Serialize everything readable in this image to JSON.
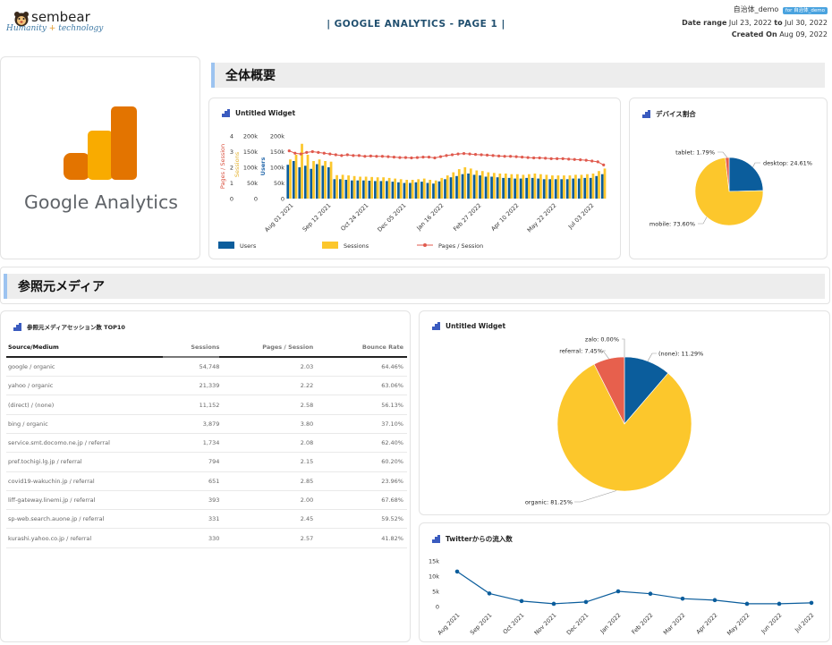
{
  "brand": {
    "name": "sembear",
    "tagline_a": "Humanity",
    "tagline_plus": "+",
    "tagline_b": "technology"
  },
  "report": {
    "title": "| GOOGLE ANALYTICS - PAGE 1 |"
  },
  "meta": {
    "account": "自治体_demo",
    "account_badge": "for 自治体_demo",
    "date_label": "Date range",
    "date_from": "Jul 23, 2022",
    "date_to_word": "to",
    "date_to": "Jul 30, 2022",
    "created_label": "Created On",
    "created": "Aug 09, 2022"
  },
  "logo": {
    "text": "Google Analytics",
    "colors": {
      "dark": "#E37400",
      "light": "#F9AB00"
    }
  },
  "sections": {
    "overview": "全体概要",
    "referral": "参照元メディア"
  },
  "widgets": {
    "combo": "Untitled Widget",
    "device": "デバイス割合",
    "table": "参照元メディアセッション数 TOP10",
    "source_pie": "Untitled Widget",
    "twitter": "Twitterからの流入数"
  },
  "colors": {
    "users": "#0b5d9c",
    "sessions": "#fcc72c",
    "pages": "#e05a4e",
    "organic": "#fcc72c",
    "none": "#0b5d9c",
    "referral": "#e7604d",
    "twitter": "#0b5d9c",
    "desktop": "#0b5d9c",
    "mobile": "#fcc72c",
    "tablet": "#e7604d"
  },
  "chart_data": [
    {
      "type": "bar",
      "title": "Untitled Widget",
      "x_ticks": [
        "Aug 01 2021",
        "Sep 12 2021",
        "Oct 24 2021",
        "Dec 05 2021",
        "Jan 16 2022",
        "Feb 27 2022",
        "Apr 10 2022",
        "May 22 2022",
        "Jul 03 2022"
      ],
      "axes": {
        "pages": {
          "label": "Pages / Session",
          "ticks": [
            "4",
            "3",
            "2",
            "1",
            "0"
          ],
          "ylim": [
            0,
            4
          ]
        },
        "sessions": {
          "label": "Sessions",
          "ticks": [
            "200k",
            "150k",
            "100k",
            "50k",
            "0"
          ],
          "ylim": [
            0,
            200000
          ]
        },
        "users": {
          "label": "Users",
          "ticks": [
            "200k",
            "150k",
            "100k",
            "50k",
            "0"
          ],
          "ylim": [
            0,
            200000
          ]
        }
      },
      "series": [
        {
          "name": "Users",
          "kind": "bar",
          "axis": "users",
          "values": [
            108000,
            120000,
            100000,
            105000,
            95000,
            110000,
            105000,
            100000,
            62000,
            62000,
            60000,
            58000,
            58000,
            58000,
            57000,
            56000,
            56000,
            56000,
            54000,
            52000,
            50000,
            50000,
            52000,
            54000,
            50000,
            48000,
            55000,
            62000,
            68000,
            72000,
            78000,
            80000,
            76000,
            74000,
            70000,
            70000,
            68000,
            66000,
            66000,
            64000,
            64000,
            66000,
            66000,
            64000,
            62000,
            62000,
            62000,
            62000,
            62000,
            64000,
            64000,
            66000,
            66000,
            72000,
            78000
          ]
        },
        {
          "name": "Sessions",
          "kind": "bar",
          "axis": "sessions",
          "values": [
            125000,
            140000,
            175000,
            140000,
            120000,
            125000,
            120000,
            118000,
            75000,
            76000,
            74000,
            72000,
            70000,
            70000,
            69000,
            68000,
            68000,
            66000,
            64000,
            62000,
            60000,
            60000,
            62000,
            64000,
            60000,
            58000,
            66000,
            74000,
            84000,
            94000,
            100000,
            96000,
            90000,
            88000,
            84000,
            82000,
            80000,
            80000,
            78000,
            78000,
            76000,
            78000,
            80000,
            78000,
            76000,
            74000,
            74000,
            74000,
            74000,
            76000,
            76000,
            78000,
            80000,
            88000,
            96000
          ]
        },
        {
          "name": "Pages / Session",
          "kind": "line",
          "axis": "pages",
          "values": [
            3.05,
            2.9,
            2.85,
            2.95,
            3.0,
            2.95,
            2.9,
            2.85,
            2.8,
            2.75,
            2.8,
            2.75,
            2.75,
            2.7,
            2.72,
            2.7,
            2.7,
            2.68,
            2.65,
            2.62,
            2.62,
            2.6,
            2.62,
            2.65,
            2.65,
            2.6,
            2.68,
            2.75,
            2.8,
            2.85,
            2.88,
            2.85,
            2.82,
            2.8,
            2.78,
            2.75,
            2.72,
            2.7,
            2.7,
            2.68,
            2.65,
            2.62,
            2.6,
            2.6,
            2.58,
            2.55,
            2.55,
            2.55,
            2.52,
            2.5,
            2.48,
            2.45,
            2.4,
            2.35,
            2.15
          ]
        }
      ],
      "legend": [
        "Users",
        "Sessions",
        "Pages / Session"
      ]
    },
    {
      "type": "pie",
      "title": "デバイス割合",
      "slices": [
        {
          "label": "desktop",
          "value": 24.61,
          "text": "desktop: 24.61%"
        },
        {
          "label": "mobile",
          "value": 73.6,
          "text": "mobile: 73.60%"
        },
        {
          "label": "tablet",
          "value": 1.79,
          "text": "tablet: 1.79%"
        }
      ]
    },
    {
      "type": "table",
      "title": "参照元メディアセッション数 TOP10",
      "columns": [
        "Source/Medium",
        "Sessions",
        "Pages / Session",
        "Bounce Rate"
      ],
      "rows": [
        [
          "google / organic",
          "54,748",
          "2.03",
          "64.46%"
        ],
        [
          "yahoo / organic",
          "21,339",
          "2.22",
          "63.06%"
        ],
        [
          "(direct) / (none)",
          "11,152",
          "2.58",
          "56.13%"
        ],
        [
          "bing / organic",
          "3,879",
          "3.80",
          "37.10%"
        ],
        [
          "service.smt.docomo.ne.jp / referral",
          "1,734",
          "2.08",
          "62.40%"
        ],
        [
          "pref.tochigi.lg.jp / referral",
          "794",
          "2.15",
          "60.20%"
        ],
        [
          "covid19-wakuchin.jp / referral",
          "651",
          "2.85",
          "23.96%"
        ],
        [
          "liff-gateway.linemi.jp / referral",
          "393",
          "2.00",
          "67.68%"
        ],
        [
          "sp-web.search.auone.jp / referral",
          "331",
          "2.45",
          "59.52%"
        ],
        [
          "kurashi.yahoo.co.jp / referral",
          "330",
          "2.57",
          "41.82%"
        ]
      ]
    },
    {
      "type": "pie",
      "title": "Untitled Widget",
      "slices": [
        {
          "label": "(none)",
          "value": 11.29,
          "text": "(none): 11.29%"
        },
        {
          "label": "organic",
          "value": 81.25,
          "text": "organic: 81.25%"
        },
        {
          "label": "referral",
          "value": 7.45,
          "text": "referral: 7.45%"
        },
        {
          "label": "zalo",
          "value": 0.0,
          "text": "zalo: 0.00%"
        }
      ]
    },
    {
      "type": "line",
      "title": "Twitterからの流入数",
      "categories": [
        "Aug 2021",
        "Sep 2021",
        "Oct 2021",
        "Nov 2021",
        "Dec 2021",
        "Jan 2022",
        "Feb 2022",
        "Mar 2022",
        "Apr 2022",
        "May 2022",
        "Jun 2022",
        "Jul 2022"
      ],
      "values": [
        11500,
        4300,
        1800,
        900,
        1500,
        5000,
        4200,
        2600,
        2100,
        900,
        900,
        1200
      ],
      "ylim": [
        0,
        15000
      ],
      "y_ticks": [
        "15k",
        "10k",
        "5k",
        "0"
      ]
    }
  ]
}
